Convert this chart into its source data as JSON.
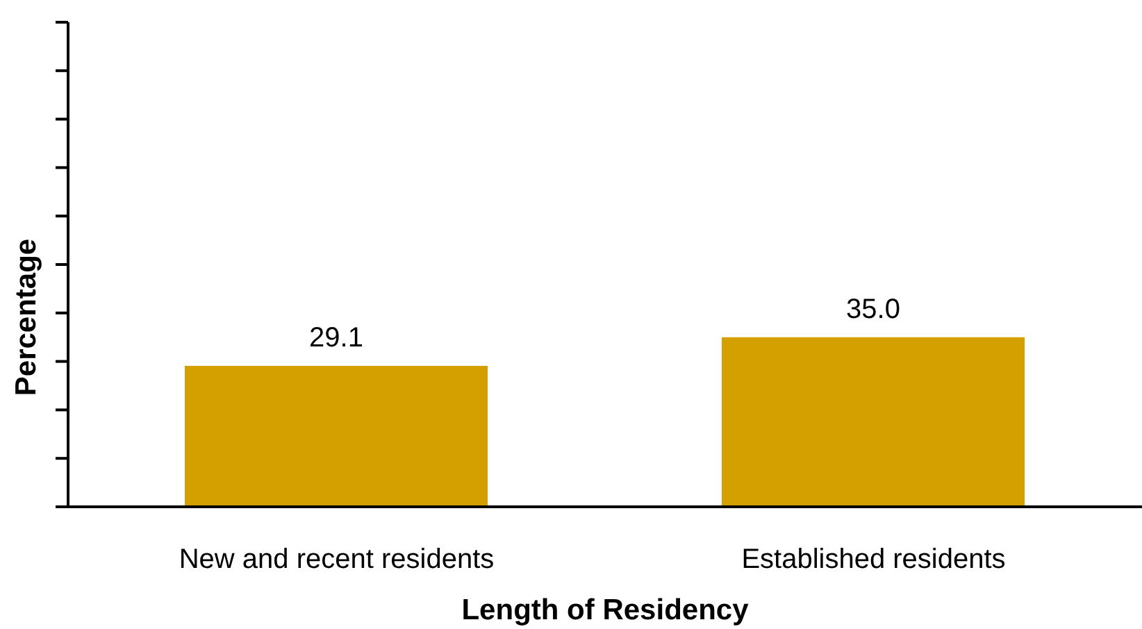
{
  "chart_data": {
    "type": "bar",
    "categories": [
      "New and recent residents",
      "Established residents"
    ],
    "values": [
      29.1,
      35.0
    ],
    "value_labels": [
      "29.1",
      "35.0"
    ],
    "color": "#d4a000",
    "xlabel": "Length of Residency",
    "ylabel": "Percentage",
    "ylim": [
      0,
      100
    ],
    "yticks": [
      {
        "value": 0,
        "label": null
      },
      {
        "value": 10,
        "label": null
      },
      {
        "value": 20,
        "label": null
      },
      {
        "value": 30,
        "label": null
      },
      {
        "value": 40,
        "label": null
      },
      {
        "value": 50,
        "label": null
      },
      {
        "value": 60,
        "label": null
      },
      {
        "value": 70,
        "label": null
      },
      {
        "value": 80,
        "label": null
      },
      {
        "value": 90,
        "label": null
      },
      {
        "value": 100,
        "label": null
      }
    ],
    "tick_labels": "x"
  }
}
